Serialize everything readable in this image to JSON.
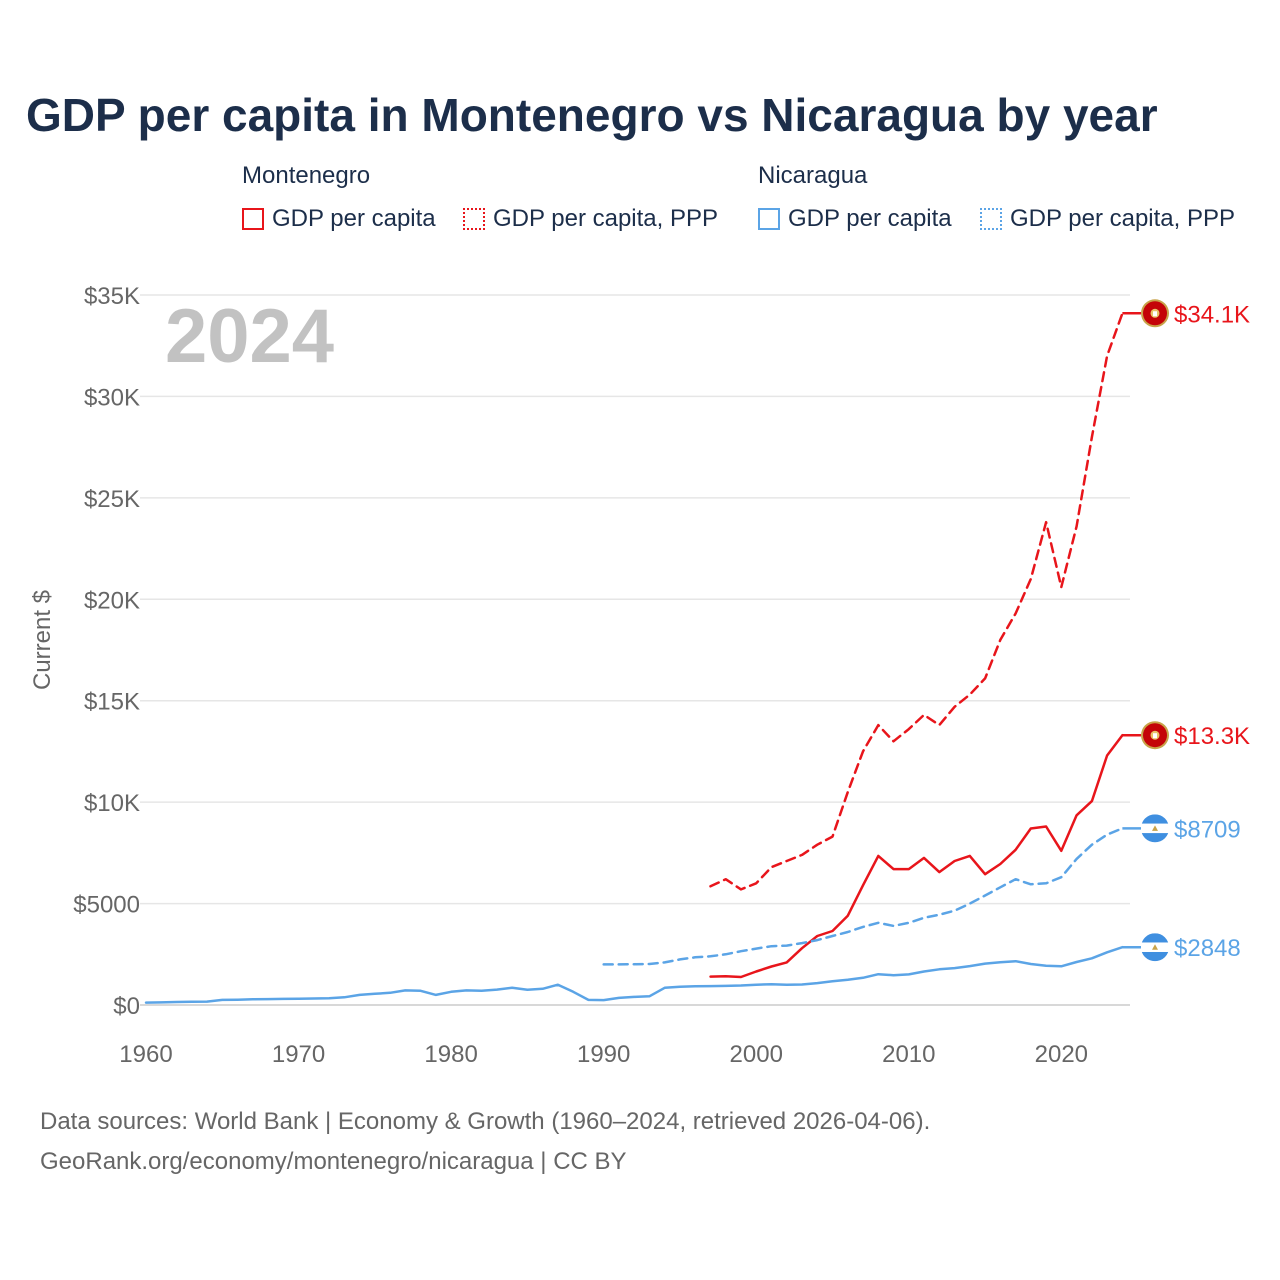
{
  "title": "GDP per capita in Montenegro vs Nicaragua by year",
  "legend": [
    {
      "group": "Montenegro",
      "items": [
        {
          "label": "GDP per capita",
          "color": "#e8151b",
          "style": "solid"
        },
        {
          "label": "GDP per capita, PPP",
          "color": "#e8151b",
          "style": "dotted"
        }
      ]
    },
    {
      "group": "Nicaragua",
      "items": [
        {
          "label": "GDP per capita",
          "color": "#5ba4e6",
          "style": "solid"
        },
        {
          "label": "GDP per capita, PPP",
          "color": "#5ba4e6",
          "style": "dotted"
        }
      ]
    }
  ],
  "chart_data": {
    "type": "line",
    "title": "GDP per capita in Montenegro vs Nicaragua by year",
    "year_label": "2024",
    "ylabel": "Current $",
    "xlabel": "",
    "xlim": [
      1960,
      2024
    ],
    "ylim": [
      0,
      35000
    ],
    "grid": true,
    "x_ticks": [
      1960,
      1970,
      1980,
      1990,
      2000,
      2010,
      2020
    ],
    "y_ticks": [
      {
        "value": 0,
        "label": "$0"
      },
      {
        "value": 5000,
        "label": "$5000"
      },
      {
        "value": 10000,
        "label": "$10K"
      },
      {
        "value": 15000,
        "label": "$15K"
      },
      {
        "value": 20000,
        "label": "$20K"
      },
      {
        "value": 25000,
        "label": "$25K"
      },
      {
        "value": 30000,
        "label": "$30K"
      },
      {
        "value": 35000,
        "label": "$35K"
      }
    ],
    "series": [
      {
        "id": "montenegro-ppp",
        "name": "Montenegro GDP per capita, PPP",
        "color": "#e8151b",
        "dashed": true,
        "end_label": "$34.1K",
        "flag": "montenegro",
        "x": [
          1997,
          1998,
          1999,
          2000,
          2001,
          2002,
          2003,
          2004,
          2005,
          2006,
          2007,
          2008,
          2009,
          2010,
          2011,
          2012,
          2013,
          2014,
          2015,
          2016,
          2017,
          2018,
          2019,
          2020,
          2021,
          2022,
          2023,
          2024
        ],
        "values": [
          5850,
          6200,
          5700,
          6000,
          6800,
          7100,
          7400,
          7900,
          8300,
          10500,
          12500,
          13800,
          13000,
          13600,
          14300,
          13800,
          14700,
          15300,
          16100,
          18000,
          19300,
          21000,
          23800,
          20600,
          23600,
          28000,
          32000,
          34100
        ]
      },
      {
        "id": "montenegro-gdp",
        "name": "Montenegro GDP per capita",
        "color": "#e8151b",
        "dashed": false,
        "end_label": "$13.3K",
        "flag": "montenegro",
        "x": [
          1997,
          1998,
          1999,
          2000,
          2001,
          2002,
          2003,
          2004,
          2005,
          2006,
          2007,
          2008,
          2009,
          2010,
          2011,
          2012,
          2013,
          2014,
          2015,
          2016,
          2017,
          2018,
          2019,
          2020,
          2021,
          2022,
          2023,
          2024
        ],
        "values": [
          1400,
          1420,
          1380,
          1650,
          1900,
          2100,
          2800,
          3400,
          3650,
          4400,
          5900,
          7350,
          6700,
          6700,
          7250,
          6550,
          7100,
          7350,
          6450,
          6950,
          7650,
          8700,
          8800,
          7600,
          9350,
          10050,
          12300,
          13300
        ]
      },
      {
        "id": "nicaragua-ppp",
        "name": "Nicaragua GDP per capita, PPP",
        "color": "#5ba4e6",
        "dashed": true,
        "end_label": "$8709",
        "flag": "nicaragua",
        "x": [
          1990,
          1991,
          1992,
          1993,
          1994,
          1995,
          1996,
          1997,
          1998,
          1999,
          2000,
          2001,
          2002,
          2003,
          2004,
          2005,
          2006,
          2007,
          2008,
          2009,
          2010,
          2011,
          2012,
          2013,
          2014,
          2015,
          2016,
          2017,
          2018,
          2019,
          2020,
          2021,
          2022,
          2023,
          2024
        ],
        "values": [
          2000,
          2000,
          2010,
          2020,
          2100,
          2250,
          2350,
          2400,
          2500,
          2650,
          2780,
          2900,
          2930,
          3050,
          3200,
          3400,
          3600,
          3850,
          4050,
          3900,
          4050,
          4300,
          4450,
          4650,
          5000,
          5400,
          5800,
          6200,
          5950,
          6000,
          6300,
          7200,
          7900,
          8400,
          8709
        ]
      },
      {
        "id": "nicaragua-gdp",
        "name": "Nicaragua GDP per capita",
        "color": "#5ba4e6",
        "dashed": false,
        "end_label": "$2848",
        "flag": "nicaragua",
        "x": [
          1960,
          1961,
          1962,
          1963,
          1964,
          1965,
          1966,
          1967,
          1968,
          1969,
          1970,
          1971,
          1972,
          1973,
          1974,
          1975,
          1976,
          1977,
          1978,
          1979,
          1980,
          1981,
          1982,
          1983,
          1984,
          1985,
          1986,
          1987,
          1988,
          1989,
          1990,
          1991,
          1992,
          1993,
          1994,
          1995,
          1996,
          1997,
          1998,
          1999,
          2000,
          2001,
          2002,
          2003,
          2004,
          2005,
          2006,
          2007,
          2008,
          2009,
          2010,
          2011,
          2012,
          2013,
          2014,
          2015,
          2016,
          2017,
          2018,
          2019,
          2020,
          2021,
          2022,
          2023,
          2024
        ],
        "values": [
          120,
          130,
          150,
          160,
          170,
          250,
          260,
          280,
          290,
          300,
          310,
          320,
          330,
          380,
          500,
          550,
          600,
          720,
          700,
          500,
          650,
          720,
          700,
          760,
          850,
          750,
          800,
          1000,
          650,
          250,
          240,
          350,
          400,
          430,
          850,
          900,
          920,
          930,
          940,
          960,
          1000,
          1020,
          1000,
          1010,
          1080,
          1170,
          1240,
          1340,
          1520,
          1470,
          1510,
          1650,
          1760,
          1820,
          1920,
          2040,
          2110,
          2160,
          2020,
          1930,
          1910,
          2120,
          2300,
          2600,
          2848
        ]
      }
    ]
  },
  "footer": {
    "line1": "Data sources: World Bank | Economy & Growth (1960–2024, retrieved 2026-04-06).",
    "line2": "GeoRank.org/economy/montenegro/nicaragua | CC BY"
  }
}
